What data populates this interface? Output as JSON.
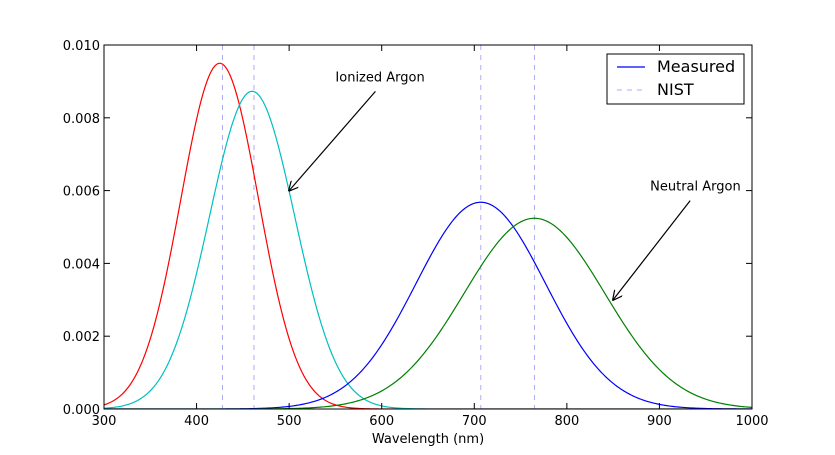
{
  "chart_data": {
    "type": "line",
    "title": "",
    "xlabel": "Wavelength (nm)",
    "ylabel": "",
    "xlim": [
      300,
      1000
    ],
    "ylim": [
      0,
      0.01
    ],
    "xticks": [
      "300",
      "400",
      "500",
      "600",
      "700",
      "800",
      "900",
      "1000"
    ],
    "yticks": [
      "0.000",
      "0.002",
      "0.004",
      "0.006",
      "0.008",
      "0.010"
    ],
    "grid": false,
    "legend": {
      "placement": "top-right",
      "entries": [
        {
          "label": "Measured",
          "color": "#0000ff",
          "style": "solid"
        },
        {
          "label": "NIST",
          "color": "#8888ff",
          "style": "dashed"
        }
      ]
    },
    "series": [
      {
        "color": "#ff0000",
        "peak_x": 425,
        "peak_y": 0.0095,
        "sigma": 42
      },
      {
        "color": "#00bfbf",
        "peak_x": 460,
        "peak_y": 0.00873,
        "sigma": 46
      },
      {
        "color": "#0000ff",
        "peak_x": 707,
        "peak_y": 0.00568,
        "sigma": 70
      },
      {
        "color": "#008000",
        "peak_x": 765,
        "peak_y": 0.00524,
        "sigma": 76
      }
    ],
    "nist_lines": [
      428,
      462,
      707,
      765
    ],
    "annotations": [
      {
        "text": "Ionized Argon",
        "text_x": 550,
        "text_y": 0.009,
        "arrow_x": 500,
        "arrow_y": 0.006
      },
      {
        "text": "Neutral Argon",
        "text_x": 890,
        "text_y": 0.006,
        "arrow_x": 850,
        "arrow_y": 0.003
      }
    ]
  }
}
